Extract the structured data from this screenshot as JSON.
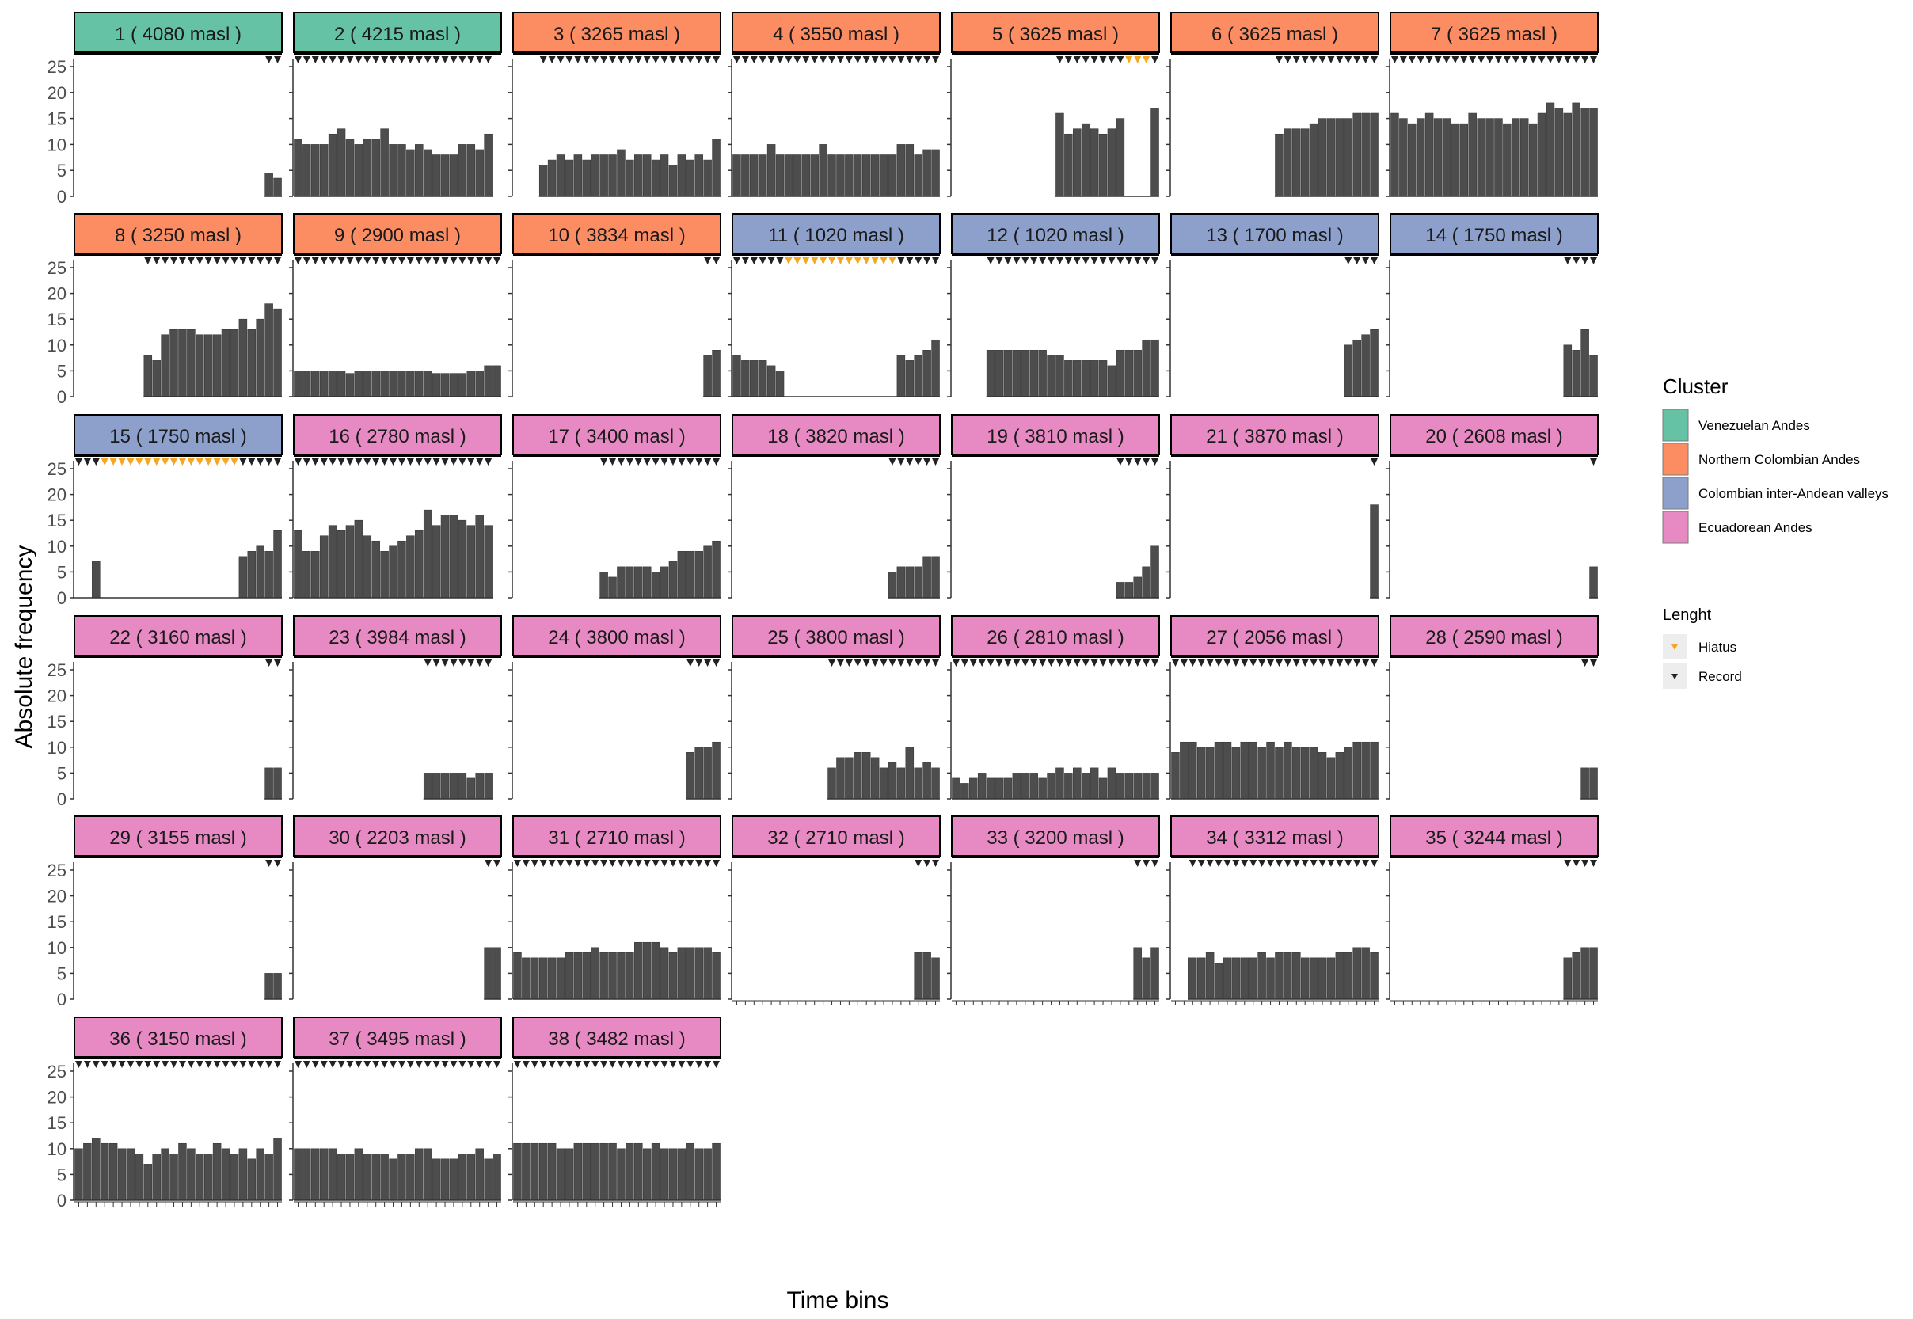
{
  "chart_data": {
    "type": "bar",
    "ylabel": "Absolute frequency",
    "xlabel": "Time bins",
    "ylim": [
      0,
      25
    ],
    "yticks": [
      0,
      5,
      10,
      15,
      20,
      25
    ],
    "bins": 24,
    "legend": {
      "placement": "right",
      "fill_title": "Cluster",
      "clusters": [
        {
          "name": "Venezuelan Andes",
          "color": "#66c2a5"
        },
        {
          "name": "Northern Colombian Andes",
          "color": "#fc8d62"
        },
        {
          "name": "Colombian inter-Andean valleys",
          "color": "#8da0cb"
        },
        {
          "name": "Ecuadorean Andes",
          "color": "#e78ac3"
        }
      ],
      "shape_title": "Lenght",
      "shapes": [
        {
          "name": "Hiatus",
          "color": "#f5a623"
        },
        {
          "name": "Record",
          "color": "#222222"
        }
      ]
    },
    "bar_color": "#4d4d4d",
    "panels": [
      {
        "label": "1 ( 4080 masl )",
        "cluster": 0,
        "values": [
          null,
          null,
          null,
          null,
          null,
          null,
          null,
          null,
          null,
          null,
          null,
          null,
          null,
          null,
          null,
          null,
          null,
          null,
          null,
          null,
          null,
          null,
          4.5,
          3.5
        ],
        "hiatus": []
      },
      {
        "label": "2 ( 4215 masl )",
        "cluster": 0,
        "values": [
          11,
          10,
          10,
          10,
          12,
          13,
          11,
          10,
          11,
          11,
          13,
          10,
          10,
          9,
          10,
          9,
          8,
          8,
          8,
          10,
          10,
          9,
          12,
          null
        ],
        "hiatus": []
      },
      {
        "label": "3 ( 3265 masl )",
        "cluster": 1,
        "values": [
          null,
          null,
          null,
          6,
          7,
          8,
          7,
          8,
          7,
          8,
          8,
          8,
          9,
          7,
          8,
          8,
          7,
          8,
          6,
          8,
          7,
          8,
          7,
          11
        ],
        "hiatus": []
      },
      {
        "label": "4 ( 3550 masl )",
        "cluster": 1,
        "values": [
          8,
          8,
          8,
          8,
          10,
          8,
          8,
          8,
          8,
          8,
          10,
          8,
          8,
          8,
          8,
          8,
          8,
          8,
          8,
          10,
          10,
          8,
          9,
          9
        ],
        "hiatus": []
      },
      {
        "label": "5 ( 3625 masl )",
        "cluster": 1,
        "values": [
          null,
          null,
          null,
          null,
          null,
          null,
          null,
          null,
          null,
          null,
          null,
          null,
          16,
          12,
          13,
          14,
          13,
          12,
          13,
          15,
          0,
          0,
          0,
          17
        ],
        "hiatus": [
          20,
          21,
          22
        ]
      },
      {
        "label": "6 ( 3625 masl )",
        "cluster": 1,
        "values": [
          null,
          null,
          null,
          null,
          null,
          null,
          null,
          null,
          null,
          null,
          null,
          null,
          12,
          13,
          13,
          13,
          14,
          15,
          15,
          15,
          15,
          16,
          16,
          16
        ],
        "hiatus": []
      },
      {
        "label": "7 ( 3625 masl )",
        "cluster": 1,
        "values": [
          16,
          15,
          14,
          15,
          16,
          15,
          15,
          14,
          14,
          16,
          15,
          15,
          15,
          14,
          15,
          15,
          14,
          16,
          18,
          17,
          16,
          18,
          17,
          17
        ],
        "hiatus": []
      },
      {
        "label": "8 ( 3250 masl )",
        "cluster": 1,
        "values": [
          null,
          null,
          null,
          null,
          null,
          null,
          null,
          null,
          8,
          7,
          12,
          13,
          13,
          13,
          12,
          12,
          12,
          13,
          13,
          15,
          13,
          15,
          18,
          17
        ],
        "hiatus": []
      },
      {
        "label": "9 ( 2900 masl )",
        "cluster": 1,
        "values": [
          5,
          5,
          5,
          5,
          5,
          5,
          4.5,
          5,
          5,
          5,
          5,
          5,
          5,
          5,
          5,
          5,
          4.5,
          4.5,
          4.5,
          4.5,
          5,
          5,
          6,
          6
        ],
        "hiatus": []
      },
      {
        "label": "10 ( 3834 masl )",
        "cluster": 1,
        "values": [
          null,
          null,
          null,
          null,
          null,
          null,
          null,
          null,
          null,
          null,
          null,
          null,
          null,
          null,
          null,
          null,
          null,
          null,
          null,
          null,
          null,
          null,
          8,
          9
        ],
        "hiatus": []
      },
      {
        "label": "11 ( 1020 masl )",
        "cluster": 2,
        "values": [
          8,
          7,
          7,
          7,
          6,
          5,
          0,
          0,
          0,
          0,
          0,
          0,
          0,
          0,
          0,
          0,
          0,
          0,
          0,
          8,
          7,
          8,
          9,
          11
        ],
        "hiatus": [
          6,
          7,
          8,
          9,
          10,
          11,
          12,
          13,
          14,
          15,
          16,
          17,
          18
        ]
      },
      {
        "label": "12 ( 1020 masl )",
        "cluster": 2,
        "values": [
          null,
          null,
          null,
          null,
          9,
          9,
          9,
          9,
          9,
          9,
          9,
          8,
          8,
          7,
          7,
          7,
          7,
          7,
          6,
          9,
          9,
          9,
          11,
          11
        ],
        "hiatus": []
      },
      {
        "label": "13 ( 1700 masl )",
        "cluster": 2,
        "values": [
          null,
          null,
          null,
          null,
          null,
          null,
          null,
          null,
          null,
          null,
          null,
          null,
          null,
          null,
          null,
          null,
          null,
          null,
          null,
          null,
          10,
          11,
          12,
          13
        ],
        "hiatus": []
      },
      {
        "label": "14 ( 1750 masl )",
        "cluster": 2,
        "values": [
          null,
          null,
          null,
          null,
          null,
          null,
          null,
          null,
          null,
          null,
          null,
          null,
          null,
          null,
          null,
          null,
          null,
          null,
          null,
          null,
          10,
          9,
          13,
          8
        ],
        "hiatus": []
      },
      {
        "label": "15 ( 1750 masl )",
        "cluster": 2,
        "values": [
          0,
          0,
          7,
          0,
          0,
          0,
          0,
          0,
          0,
          0,
          0,
          0,
          0,
          0,
          0,
          0,
          0,
          0,
          0,
          8,
          9,
          10,
          9,
          13
        ],
        "hiatus": [
          3,
          4,
          5,
          6,
          7,
          8,
          9,
          10,
          11,
          12,
          13,
          14,
          15,
          16,
          17,
          18
        ]
      },
      {
        "label": "16 ( 2780 masl )",
        "cluster": 3,
        "values": [
          13,
          9,
          9,
          12,
          14,
          13,
          14,
          15,
          12,
          11,
          9,
          10,
          11,
          12,
          13,
          17,
          14,
          16,
          16,
          15,
          14,
          16,
          14,
          null
        ],
        "hiatus": []
      },
      {
        "label": "17 ( 3400 masl )",
        "cluster": 3,
        "values": [
          null,
          null,
          null,
          null,
          null,
          null,
          null,
          null,
          null,
          null,
          5,
          4,
          6,
          6,
          6,
          6,
          5,
          6,
          7,
          9,
          9,
          9,
          10,
          11
        ],
        "hiatus": []
      },
      {
        "label": "18 ( 3820 masl )",
        "cluster": 3,
        "values": [
          null,
          null,
          null,
          null,
          null,
          null,
          null,
          null,
          null,
          null,
          null,
          null,
          null,
          null,
          null,
          null,
          null,
          null,
          5,
          6,
          6,
          6,
          8,
          8
        ],
        "hiatus": []
      },
      {
        "label": "19 ( 3810 masl )",
        "cluster": 3,
        "values": [
          null,
          null,
          null,
          null,
          null,
          null,
          null,
          null,
          null,
          null,
          null,
          null,
          null,
          null,
          null,
          null,
          null,
          null,
          null,
          3,
          3,
          4,
          6,
          10
        ],
        "hiatus": []
      },
      {
        "label": "21 ( 3870 masl )",
        "cluster": 3,
        "values": [
          null,
          null,
          null,
          null,
          null,
          null,
          null,
          null,
          null,
          null,
          null,
          null,
          null,
          null,
          null,
          null,
          null,
          null,
          null,
          null,
          null,
          null,
          null,
          18
        ],
        "hiatus": []
      },
      {
        "label": "20 ( 2608 masl )",
        "cluster": 3,
        "values": [
          null,
          null,
          null,
          null,
          null,
          null,
          null,
          null,
          null,
          null,
          null,
          null,
          null,
          null,
          null,
          null,
          null,
          null,
          null,
          null,
          null,
          null,
          null,
          6
        ],
        "hiatus": []
      },
      {
        "label": "22 ( 3160 masl )",
        "cluster": 3,
        "values": [
          null,
          null,
          null,
          null,
          null,
          null,
          null,
          null,
          null,
          null,
          null,
          null,
          null,
          null,
          null,
          null,
          null,
          null,
          null,
          null,
          null,
          null,
          6,
          6
        ],
        "hiatus": []
      },
      {
        "label": "23 ( 3984 masl )",
        "cluster": 3,
        "values": [
          null,
          null,
          null,
          null,
          null,
          null,
          null,
          null,
          null,
          null,
          null,
          null,
          null,
          null,
          null,
          5,
          5,
          5,
          5,
          5,
          4,
          5,
          5,
          null
        ],
        "hiatus": []
      },
      {
        "label": "24 ( 3800 masl )",
        "cluster": 3,
        "values": [
          null,
          null,
          null,
          null,
          null,
          null,
          null,
          null,
          null,
          null,
          null,
          null,
          null,
          null,
          null,
          null,
          null,
          null,
          null,
          null,
          9,
          10,
          10,
          11
        ],
        "hiatus": []
      },
      {
        "label": "25 ( 3800 masl )",
        "cluster": 3,
        "values": [
          null,
          null,
          null,
          null,
          null,
          null,
          null,
          null,
          null,
          null,
          null,
          6,
          8,
          8,
          9,
          9,
          8,
          6,
          7,
          6,
          10,
          6,
          7,
          6
        ],
        "hiatus": []
      },
      {
        "label": "26 ( 2810 masl )",
        "cluster": 3,
        "values": [
          4,
          3,
          4,
          5,
          4,
          4,
          4,
          5,
          5,
          5,
          4,
          5,
          6,
          5,
          6,
          5,
          6,
          4,
          6,
          5,
          5,
          5,
          5,
          5
        ],
        "hiatus": []
      },
      {
        "label": "27 ( 2056 masl )",
        "cluster": 3,
        "values": [
          9,
          11,
          11,
          10,
          10,
          11,
          11,
          10,
          11,
          11,
          10,
          11,
          10,
          11,
          10,
          10,
          10,
          9,
          8,
          9,
          10,
          11,
          11,
          11
        ],
        "hiatus": []
      },
      {
        "label": "28 ( 2590 masl )",
        "cluster": 3,
        "values": [
          null,
          null,
          null,
          null,
          null,
          null,
          null,
          null,
          null,
          null,
          null,
          null,
          null,
          null,
          null,
          null,
          null,
          null,
          null,
          null,
          null,
          null,
          6,
          6
        ],
        "hiatus": []
      },
      {
        "label": "29 ( 3155 masl )",
        "cluster": 3,
        "values": [
          null,
          null,
          null,
          null,
          null,
          null,
          null,
          null,
          null,
          null,
          null,
          null,
          null,
          null,
          null,
          null,
          null,
          null,
          null,
          null,
          null,
          null,
          5,
          5
        ],
        "hiatus": []
      },
      {
        "label": "30 ( 2203 masl )",
        "cluster": 3,
        "values": [
          null,
          null,
          null,
          null,
          null,
          null,
          null,
          null,
          null,
          null,
          null,
          null,
          null,
          null,
          null,
          null,
          null,
          null,
          null,
          null,
          null,
          null,
          10,
          10
        ],
        "hiatus": []
      },
      {
        "label": "31 ( 2710 masl )",
        "cluster": 3,
        "values": [
          9,
          8,
          8,
          8,
          8,
          8,
          9,
          9,
          9,
          10,
          9,
          9,
          9,
          9,
          11,
          11,
          11,
          10,
          9,
          10,
          10,
          10,
          10,
          9
        ],
        "hiatus": []
      },
      {
        "label": "32 ( 2710 masl )",
        "cluster": 3,
        "values": [
          null,
          null,
          null,
          null,
          null,
          null,
          null,
          null,
          null,
          null,
          null,
          null,
          null,
          null,
          null,
          null,
          null,
          null,
          null,
          null,
          null,
          9,
          9,
          8
        ],
        "hiatus": []
      },
      {
        "label": "33 ( 3200 masl )",
        "cluster": 3,
        "values": [
          null,
          null,
          null,
          null,
          null,
          null,
          null,
          null,
          null,
          null,
          null,
          null,
          null,
          null,
          null,
          null,
          null,
          null,
          null,
          null,
          null,
          10,
          8,
          10
        ],
        "hiatus": []
      },
      {
        "label": "34 ( 3312 masl )",
        "cluster": 3,
        "values": [
          null,
          null,
          8,
          8,
          9,
          7,
          8,
          8,
          8,
          8,
          9,
          8,
          9,
          9,
          9,
          8,
          8,
          8,
          8,
          9,
          9,
          10,
          10,
          9
        ],
        "hiatus": []
      },
      {
        "label": "35 ( 3244 masl )",
        "cluster": 3,
        "values": [
          null,
          null,
          null,
          null,
          null,
          null,
          null,
          null,
          null,
          null,
          null,
          null,
          null,
          null,
          null,
          null,
          null,
          null,
          null,
          null,
          8,
          9,
          10,
          10
        ],
        "hiatus": []
      },
      {
        "label": "36 ( 3150 masl )",
        "cluster": 3,
        "values": [
          10,
          11,
          12,
          11,
          11,
          10,
          10,
          9,
          7,
          9,
          10,
          9,
          11,
          10,
          9,
          9,
          11,
          10,
          9,
          10,
          8,
          10,
          9,
          12
        ],
        "hiatus": []
      },
      {
        "label": "37 ( 3495 masl )",
        "cluster": 3,
        "values": [
          10,
          10,
          10,
          10,
          10,
          9,
          9,
          10,
          9,
          9,
          9,
          8,
          9,
          9,
          10,
          10,
          8,
          8,
          8,
          9,
          9,
          10,
          8,
          9
        ],
        "hiatus": []
      },
      {
        "label": "38 ( 3482 masl )",
        "cluster": 3,
        "values": [
          11,
          11,
          11,
          11,
          11,
          10,
          10,
          11,
          11,
          11,
          11,
          11,
          10,
          11,
          11,
          10,
          11,
          10,
          10,
          10,
          11,
          10,
          10,
          11
        ],
        "hiatus": []
      }
    ]
  }
}
